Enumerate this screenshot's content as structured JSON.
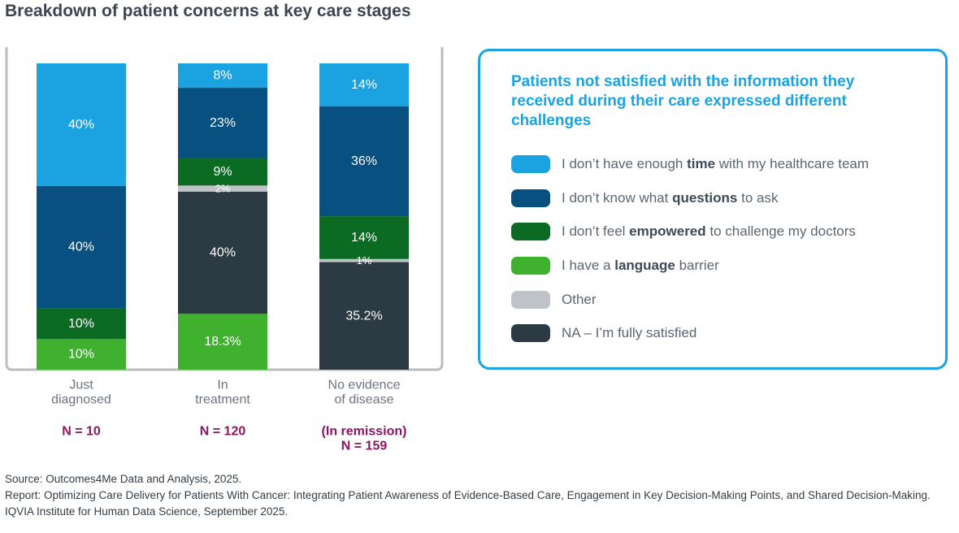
{
  "title": "Breakdown of patient concerns at key care stages",
  "chart_data": {
    "type": "bar",
    "stacked": true,
    "normalized": true,
    "categories": [
      "Just diagnosed",
      "In treatment",
      "No evidence of disease"
    ],
    "category_lines": [
      [
        "Just",
        "diagnosed"
      ],
      [
        "In",
        "treatment"
      ],
      [
        "No evidence",
        "of disease"
      ]
    ],
    "sample_sizes": [
      [
        "N = 10"
      ],
      [
        "N = 120"
      ],
      [
        "(In remission)",
        "N = 159"
      ]
    ],
    "series": [
      {
        "name": "I don’t have enough time with my healthcare team",
        "color": "#1aa3e0",
        "values": [
          40,
          8,
          14
        ],
        "labels": [
          "40%",
          "8%",
          "14%"
        ]
      },
      {
        "name": "I don’t know what questions to ask",
        "color": "#07507f",
        "values": [
          40,
          23,
          36
        ],
        "labels": [
          "40%",
          "23%",
          "36%"
        ]
      },
      {
        "name": "I don’t feel empowered to challenge my doctors",
        "color": "#0b6b23",
        "values": [
          10,
          9,
          14
        ],
        "labels": [
          "10%",
          "9%",
          "14%"
        ]
      },
      {
        "name": "I have a language barrier",
        "color": "#40b02f",
        "values": [
          10,
          18.3,
          0
        ],
        "labels": [
          "10%",
          "18.3%",
          ""
        ]
      },
      {
        "name": "Other",
        "color": "#bfc3c8",
        "values": [
          0,
          2,
          1
        ],
        "labels": [
          "",
          "2%",
          "1%"
        ]
      },
      {
        "name": "NA – I’m fully satisfied",
        "color": "#2c3a43",
        "values": [
          0,
          40,
          35.2
        ],
        "labels": [
          "",
          "40%",
          "35.2%"
        ]
      }
    ],
    "stack_order_bottom_to_top": [
      3,
      5,
      4,
      2,
      1,
      0
    ],
    "ylim": [
      0,
      100
    ],
    "grid": false,
    "legend": "right"
  },
  "legend": {
    "heading": "Patients not satisfied with the information they received during their care expressed different challenges",
    "items": [
      {
        "pre": "I don’t have enough ",
        "bold": "time",
        "post": " with my healthcare team",
        "color": "#1aa3e0"
      },
      {
        "pre": "I don’t know what ",
        "bold": "questions",
        "post": " to ask",
        "color": "#07507f"
      },
      {
        "pre": "I don’t feel ",
        "bold": "empowered",
        "post": " to challenge my doctors",
        "color": "#0b6b23"
      },
      {
        "pre": "I have a ",
        "bold": "language",
        "post": " barrier",
        "color": "#40b02f"
      },
      {
        "pre": "Other",
        "bold": "",
        "post": "",
        "color": "#bfc3c8"
      },
      {
        "pre": "NA – I’m fully satisfied",
        "bold": "",
        "post": "",
        "color": "#2c3a43"
      }
    ]
  },
  "colors": {
    "sample_size_text": "#8a1560",
    "frame": "#b9bdc2",
    "accent": "#1aa3e0"
  },
  "source": {
    "line1": "Source: Outcomes4Me Data and Analysis, 2025.",
    "line2": "Report: Optimizing Care Delivery for Patients With Cancer: Integrating Patient Awareness of Evidence-Based Care, Engagement in Key Decision-Making Points, and Shared Decision-Making. IQVIA Institute for Human Data Science, September 2025."
  }
}
